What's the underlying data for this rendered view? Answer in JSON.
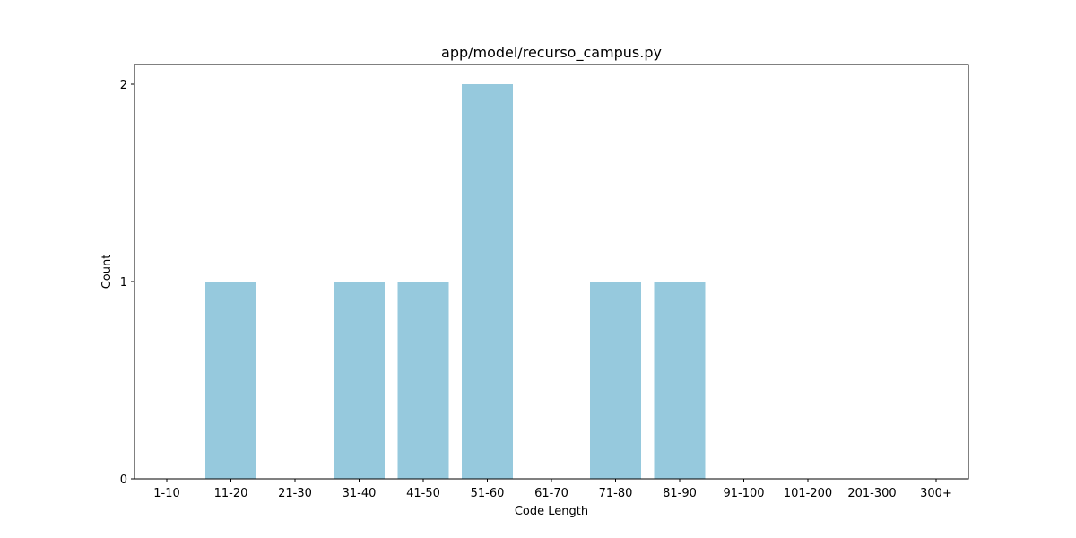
{
  "chart_data": {
    "type": "bar",
    "title": "app/model/recurso_campus.py",
    "xlabel": "Code Length",
    "ylabel": "Count",
    "categories": [
      "1-10",
      "11-20",
      "21-30",
      "31-40",
      "41-50",
      "51-60",
      "61-70",
      "71-80",
      "81-90",
      "91-100",
      "101-200",
      "201-300",
      "300+"
    ],
    "values": [
      0,
      1,
      0,
      1,
      1,
      2,
      0,
      1,
      1,
      0,
      0,
      0,
      0
    ],
    "ylim": [
      0,
      2.1
    ],
    "yticks": [
      0,
      1,
      2
    ],
    "grid": false,
    "bar_color": "#96c9dd"
  }
}
